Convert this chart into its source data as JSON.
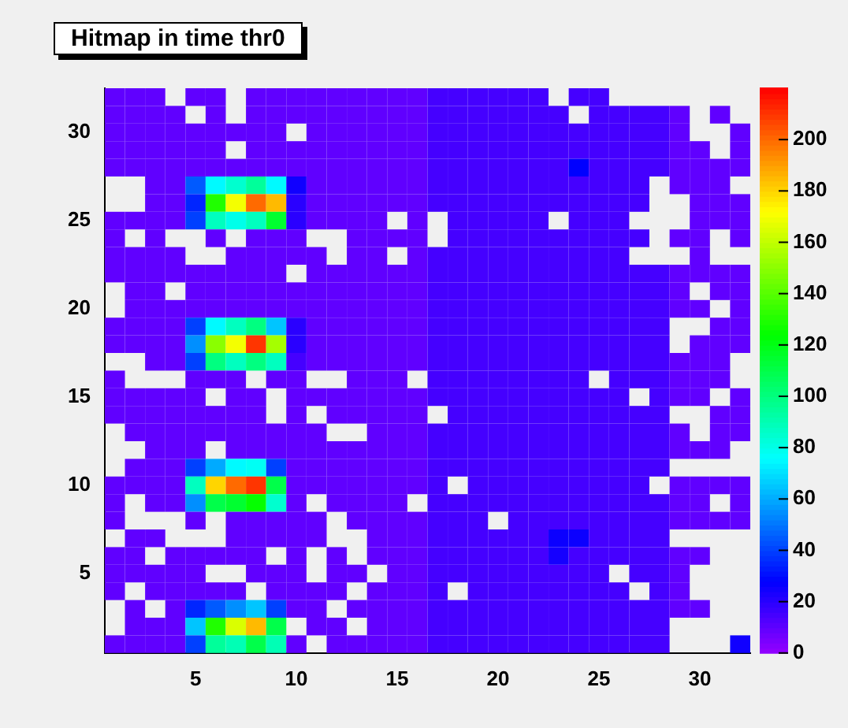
{
  "chart_data": {
    "type": "heatmap",
    "title": "Hitmap in time thr0",
    "categories": [
      null,
      null,
      null,
      null,
      "5",
      null,
      null,
      null,
      null,
      "10",
      null,
      null,
      null,
      null,
      "15",
      null,
      null,
      null,
      null,
      "20",
      null,
      null,
      null,
      null,
      "25",
      null,
      null,
      null,
      null,
      "30",
      null,
      null
    ],
    "y_categories": [
      null,
      null,
      "30",
      null,
      null,
      null,
      null,
      "25",
      null,
      null,
      null,
      null,
      "20",
      null,
      null,
      null,
      null,
      "15",
      null,
      null,
      null,
      null,
      "10",
      null,
      null,
      null,
      null,
      "5",
      null,
      null,
      null,
      null
    ],
    "clim": [
      0,
      220
    ],
    "cticks": [
      0,
      20,
      40,
      60,
      80,
      100,
      120,
      140,
      160,
      180,
      200
    ],
    "cells": [
      [
        10,
        10,
        10,
        null,
        10,
        10,
        null,
        10,
        10,
        10,
        10,
        10,
        10,
        10,
        10,
        10,
        15,
        15,
        15,
        15,
        15,
        15,
        null,
        15,
        15,
        null,
        null,
        null,
        null,
        null,
        null,
        null
      ],
      [
        10,
        10,
        10,
        10,
        null,
        10,
        null,
        10,
        10,
        10,
        10,
        10,
        10,
        10,
        10,
        10,
        15,
        15,
        15,
        15,
        15,
        15,
        15,
        null,
        15,
        15,
        15,
        15,
        10,
        null,
        10,
        null
      ],
      [
        10,
        10,
        10,
        10,
        10,
        10,
        10,
        10,
        10,
        null,
        10,
        10,
        10,
        10,
        10,
        10,
        15,
        15,
        15,
        15,
        15,
        15,
        15,
        15,
        15,
        15,
        15,
        15,
        10,
        null,
        null,
        10
      ],
      [
        10,
        10,
        10,
        10,
        10,
        10,
        null,
        10,
        10,
        10,
        10,
        10,
        10,
        10,
        10,
        10,
        15,
        15,
        15,
        15,
        15,
        15,
        15,
        15,
        15,
        15,
        15,
        15,
        10,
        10,
        null,
        10
      ],
      [
        10,
        10,
        10,
        10,
        10,
        10,
        10,
        10,
        10,
        10,
        10,
        10,
        10,
        10,
        10,
        10,
        15,
        15,
        15,
        15,
        15,
        15,
        15,
        28,
        15,
        15,
        15,
        15,
        10,
        10,
        10,
        10
      ],
      [
        null,
        null,
        10,
        10,
        45,
        75,
        85,
        95,
        75,
        25,
        10,
        10,
        10,
        10,
        10,
        10,
        15,
        15,
        15,
        15,
        15,
        15,
        15,
        15,
        15,
        15,
        15,
        null,
        10,
        10,
        10,
        null
      ],
      [
        null,
        null,
        10,
        10,
        35,
        130,
        170,
        200,
        185,
        20,
        10,
        10,
        10,
        10,
        10,
        10,
        15,
        15,
        15,
        15,
        15,
        15,
        15,
        15,
        15,
        15,
        15,
        null,
        null,
        10,
        10,
        10
      ],
      [
        10,
        10,
        10,
        10,
        40,
        88,
        80,
        88,
        115,
        20,
        10,
        10,
        10,
        10,
        null,
        10,
        null,
        15,
        15,
        15,
        15,
        15,
        null,
        15,
        15,
        15,
        null,
        null,
        null,
        10,
        10,
        10
      ],
      [
        10,
        null,
        10,
        null,
        null,
        10,
        null,
        10,
        10,
        10,
        null,
        null,
        10,
        10,
        10,
        10,
        null,
        15,
        15,
        15,
        15,
        15,
        15,
        15,
        15,
        15,
        15,
        null,
        10,
        10,
        null,
        10
      ],
      [
        10,
        10,
        10,
        10,
        null,
        null,
        10,
        10,
        10,
        10,
        10,
        null,
        10,
        10,
        null,
        10,
        15,
        15,
        15,
        15,
        15,
        15,
        15,
        15,
        15,
        15,
        null,
        null,
        null,
        10,
        null,
        null
      ],
      [
        10,
        10,
        10,
        10,
        10,
        10,
        10,
        10,
        10,
        null,
        10,
        10,
        10,
        10,
        10,
        10,
        15,
        15,
        15,
        15,
        15,
        15,
        15,
        15,
        15,
        15,
        15,
        15,
        10,
        10,
        10,
        10
      ],
      [
        null,
        10,
        10,
        null,
        10,
        10,
        10,
        10,
        10,
        10,
        10,
        10,
        10,
        10,
        10,
        10,
        15,
        15,
        15,
        15,
        15,
        15,
        15,
        15,
        15,
        15,
        15,
        15,
        10,
        null,
        10,
        10
      ],
      [
        null,
        10,
        10,
        10,
        10,
        10,
        10,
        10,
        10,
        10,
        10,
        10,
        10,
        10,
        10,
        10,
        15,
        15,
        15,
        15,
        15,
        15,
        15,
        15,
        15,
        15,
        15,
        15,
        10,
        10,
        null,
        10
      ],
      [
        10,
        10,
        10,
        10,
        40,
        75,
        88,
        100,
        65,
        20,
        10,
        10,
        10,
        10,
        10,
        10,
        15,
        15,
        15,
        15,
        15,
        15,
        15,
        15,
        15,
        15,
        15,
        15,
        null,
        null,
        10,
        10
      ],
      [
        10,
        10,
        10,
        10,
        55,
        150,
        170,
        210,
        155,
        20,
        10,
        10,
        10,
        10,
        10,
        10,
        15,
        15,
        15,
        15,
        15,
        15,
        15,
        15,
        15,
        15,
        15,
        15,
        null,
        10,
        10,
        10
      ],
      [
        null,
        null,
        10,
        10,
        40,
        100,
        88,
        100,
        88,
        15,
        10,
        10,
        10,
        10,
        10,
        10,
        15,
        15,
        15,
        15,
        15,
        15,
        15,
        15,
        15,
        15,
        15,
        15,
        10,
        10,
        10,
        null
      ],
      [
        10,
        null,
        null,
        null,
        10,
        10,
        10,
        null,
        10,
        10,
        null,
        null,
        10,
        10,
        10,
        null,
        15,
        15,
        15,
        15,
        15,
        15,
        15,
        15,
        null,
        15,
        15,
        15,
        10,
        10,
        10,
        null
      ],
      [
        10,
        10,
        10,
        10,
        10,
        null,
        10,
        10,
        null,
        10,
        10,
        10,
        10,
        10,
        10,
        10,
        15,
        15,
        15,
        15,
        15,
        15,
        15,
        15,
        15,
        15,
        null,
        15,
        10,
        10,
        null,
        10
      ],
      [
        10,
        10,
        10,
        10,
        10,
        10,
        10,
        10,
        null,
        10,
        null,
        10,
        10,
        10,
        10,
        10,
        null,
        15,
        15,
        15,
        15,
        15,
        15,
        15,
        15,
        15,
        15,
        15,
        null,
        null,
        10,
        10
      ],
      [
        null,
        10,
        10,
        10,
        10,
        10,
        10,
        10,
        10,
        10,
        10,
        null,
        null,
        10,
        10,
        10,
        15,
        15,
        15,
        15,
        15,
        15,
        15,
        15,
        15,
        15,
        15,
        15,
        10,
        null,
        10,
        10
      ],
      [
        null,
        null,
        10,
        10,
        10,
        null,
        10,
        10,
        10,
        10,
        10,
        10,
        10,
        10,
        10,
        10,
        15,
        15,
        15,
        15,
        15,
        15,
        15,
        15,
        15,
        15,
        15,
        15,
        10,
        10,
        10,
        null
      ],
      [
        null,
        10,
        10,
        10,
        40,
        60,
        75,
        78,
        40,
        10,
        10,
        10,
        10,
        10,
        10,
        10,
        15,
        15,
        15,
        15,
        15,
        15,
        15,
        15,
        15,
        15,
        15,
        15,
        null,
        null,
        null,
        null
      ],
      [
        10,
        10,
        10,
        10,
        88,
        180,
        200,
        210,
        110,
        10,
        10,
        10,
        10,
        10,
        10,
        10,
        15,
        null,
        15,
        15,
        15,
        15,
        15,
        15,
        15,
        15,
        15,
        null,
        10,
        10,
        10,
        10
      ],
      [
        10,
        null,
        10,
        10,
        55,
        110,
        115,
        125,
        85,
        10,
        null,
        10,
        10,
        10,
        10,
        null,
        15,
        15,
        15,
        15,
        15,
        15,
        15,
        15,
        15,
        15,
        15,
        15,
        10,
        10,
        null,
        10
      ],
      [
        10,
        null,
        null,
        null,
        10,
        null,
        10,
        10,
        10,
        10,
        10,
        null,
        10,
        10,
        10,
        10,
        15,
        15,
        15,
        null,
        15,
        15,
        15,
        15,
        15,
        15,
        15,
        15,
        10,
        10,
        10,
        10
      ],
      [
        null,
        10,
        10,
        null,
        null,
        null,
        10,
        10,
        10,
        10,
        10,
        null,
        null,
        10,
        10,
        10,
        15,
        15,
        15,
        15,
        15,
        15,
        26,
        26,
        15,
        15,
        15,
        15,
        null,
        null,
        null,
        null
      ],
      [
        10,
        10,
        null,
        10,
        10,
        10,
        10,
        10,
        null,
        10,
        null,
        10,
        null,
        10,
        10,
        10,
        15,
        15,
        15,
        15,
        15,
        15,
        24,
        15,
        15,
        15,
        15,
        15,
        10,
        10,
        null,
        null
      ],
      [
        10,
        10,
        10,
        10,
        10,
        null,
        null,
        10,
        10,
        10,
        null,
        10,
        10,
        null,
        10,
        10,
        15,
        15,
        15,
        15,
        15,
        15,
        15,
        15,
        15,
        null,
        15,
        15,
        10,
        null,
        null,
        null
      ],
      [
        10,
        null,
        10,
        10,
        10,
        10,
        10,
        null,
        10,
        10,
        10,
        10,
        null,
        10,
        10,
        10,
        15,
        null,
        15,
        15,
        15,
        15,
        15,
        15,
        15,
        15,
        null,
        15,
        10,
        null,
        null,
        null
      ],
      [
        null,
        10,
        null,
        10,
        35,
        45,
        55,
        65,
        40,
        10,
        10,
        null,
        10,
        10,
        10,
        10,
        15,
        15,
        15,
        15,
        15,
        15,
        15,
        15,
        15,
        15,
        15,
        15,
        10,
        10,
        null,
        null
      ],
      [
        null,
        10,
        10,
        10,
        65,
        130,
        165,
        185,
        110,
        null,
        10,
        10,
        null,
        10,
        10,
        10,
        15,
        15,
        15,
        15,
        15,
        15,
        15,
        15,
        15,
        15,
        15,
        15,
        null,
        null,
        null,
        null
      ],
      [
        10,
        10,
        10,
        10,
        40,
        95,
        90,
        110,
        90,
        10,
        null,
        10,
        10,
        10,
        10,
        10,
        15,
        15,
        15,
        15,
        15,
        15,
        15,
        15,
        15,
        15,
        15,
        15,
        null,
        null,
        null,
        25
      ]
    ]
  }
}
